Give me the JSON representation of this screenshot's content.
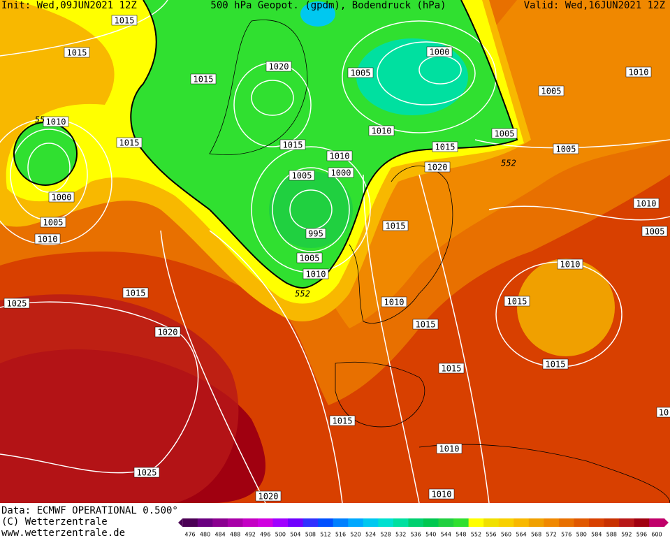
{
  "header": {
    "init": "Init: Wed,09JUN2021 12Z",
    "title": "500 hPa Geopot. (gpdm), Bodendruck (hPa)",
    "valid": "Valid: Wed,16JUN2021 12Z"
  },
  "isobar_labels": [
    1015,
    1015,
    1015,
    1020,
    1000,
    1005,
    1010,
    1005,
    1010,
    1015,
    1015,
    1010,
    1005,
    1005,
    1015,
    1010,
    1005,
    1000,
    1020,
    1000,
    1005,
    1010,
    995,
    1015,
    1010,
    1005,
    1005,
    1010,
    1010,
    1015,
    1025,
    1010,
    1015,
    1015,
    1020,
    1015,
    1015,
    1015,
    1010,
    1025,
    1020,
    1010,
    10
  ],
  "contour_labels": [
    55,
    552,
    552
  ],
  "footer": {
    "data": "Data: ECMWF OPERATIONAL 0.500°",
    "copyright": "(C) Wetterzentrale",
    "url": "www.wetterzentrale.de"
  },
  "colorbar": {
    "levels": [
      476,
      480,
      484,
      488,
      492,
      496,
      500,
      504,
      508,
      512,
      516,
      520,
      524,
      528,
      532,
      536,
      540,
      544,
      548,
      552,
      556,
      560,
      564,
      568,
      572,
      576,
      580,
      584,
      588,
      592,
      596,
      600
    ],
    "colors": [
      "#4b0055",
      "#6a0080",
      "#8a008f",
      "#a800a8",
      "#c400c4",
      "#d000e0",
      "#a000ff",
      "#7000ff",
      "#3030ff",
      "#0050ff",
      "#0080ff",
      "#00a8ff",
      "#00c8f0",
      "#00e0d0",
      "#00e0a0",
      "#00d070",
      "#00c850",
      "#20d040",
      "#30e030",
      "#ffff00",
      "#f0e000",
      "#f8d000",
      "#f8b800",
      "#f0a000",
      "#f08800",
      "#e87000",
      "#e05800",
      "#d84000",
      "#c83000",
      "#b81818",
      "#a00010",
      "#c0006a"
    ]
  }
}
